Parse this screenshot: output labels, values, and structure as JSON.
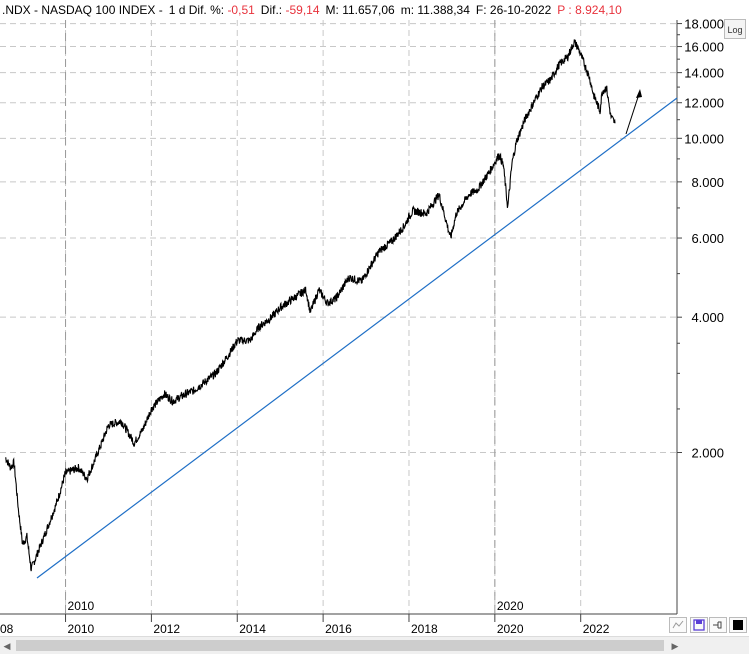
{
  "header": {
    "symbol": ".NDX - NASDAQ 100 INDEX -",
    "period": "1 d",
    "dif_pct_label": "Dif. %:",
    "dif_pct_value": "-0,51",
    "dif_label": "Dif.:",
    "dif_value": "-59,14",
    "max_label": "M:",
    "max_value": "11.657,06",
    "min_label": "m:",
    "min_value": "11.388,34",
    "date_label": "F:",
    "date_value": "26-10-2022",
    "p_label": "P :",
    "p_value": "8.924,10"
  },
  "log_toggle_label": "Log",
  "colors": {
    "price": "#000000",
    "trendline": "#1f6fc6",
    "grid": "#c8c8c8",
    "negative": "#e8323c",
    "toolbar_save": "#5b3fd6"
  },
  "icons": [
    "chart-settings-icon",
    "save-icon",
    "pin-icon",
    "color-square-icon"
  ],
  "chart_data": {
    "type": "line",
    "y_scale": "log",
    "y_ticks": [
      "2.000",
      "4.000",
      "6.000",
      "8.000",
      "10.000",
      "12.000",
      "14.000",
      "16.000",
      "18.000"
    ],
    "x_ticks": [
      "08",
      "2010",
      "2012",
      "2014",
      "2016",
      "2018",
      "2020",
      "2022"
    ],
    "x_markers": [
      "2010",
      "2020"
    ],
    "grid": true,
    "series": [
      {
        "x": [
          2008.6,
          2008.72,
          2008.8,
          2008.9,
          2009.0,
          2009.1,
          2009.2,
          2009.5,
          2009.8,
          2010.0,
          2010.3,
          2010.5,
          2010.8,
          2011.0,
          2011.3,
          2011.6,
          2011.8,
          2012.0,
          2012.3,
          2012.5,
          2012.8,
          2013.0,
          2013.3,
          2013.5,
          2013.8,
          2014.0,
          2014.3,
          2014.5,
          2014.8,
          2015.0,
          2015.3,
          2015.6,
          2015.7,
          2015.9,
          2016.1,
          2016.3,
          2016.6,
          2016.9,
          2017.0,
          2017.3,
          2017.6,
          2017.9,
          2018.0,
          2018.1,
          2018.4,
          2018.7,
          2018.97,
          2019.1,
          2019.4,
          2019.6,
          2019.9,
          2020.1,
          2020.2,
          2020.3,
          2020.4,
          2020.5,
          2020.7,
          2020.9,
          2021.1,
          2021.3,
          2021.5,
          2021.7,
          2021.85,
          2021.95,
          2022.1,
          2022.2,
          2022.3,
          2022.45,
          2022.5,
          2022.6,
          2022.7,
          2022.8
        ],
        "y": [
          1950,
          1850,
          1900,
          1500,
          1250,
          1300,
          1100,
          1300,
          1550,
          1800,
          1850,
          1750,
          2050,
          2300,
          2350,
          2100,
          2250,
          2500,
          2700,
          2600,
          2700,
          2750,
          2900,
          3000,
          3300,
          3550,
          3550,
          3800,
          4000,
          4200,
          4400,
          4600,
          4100,
          4600,
          4300,
          4400,
          4900,
          4800,
          5000,
          5600,
          5900,
          6400,
          6700,
          6900,
          6800,
          7500,
          6000,
          6800,
          7500,
          7700,
          8500,
          9200,
          8700,
          7000,
          8800,
          9800,
          11000,
          12000,
          13000,
          13500,
          14600,
          15200,
          16400,
          15800,
          14500,
          13700,
          12500,
          11500,
          12700,
          13000,
          11200,
          10800
        ]
      }
    ]
  }
}
